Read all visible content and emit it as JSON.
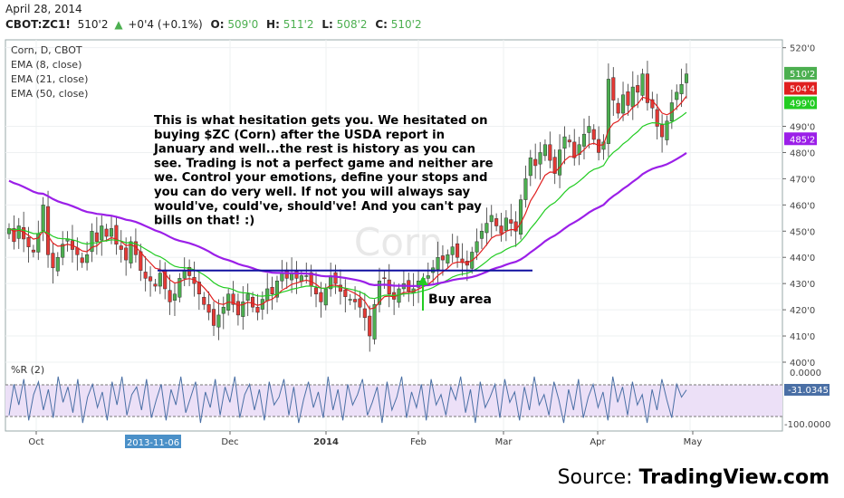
{
  "header": {
    "date": "April 28, 2014",
    "symbol": "CBOT:ZC1!",
    "last": "510'2",
    "change_arrow": "▲",
    "change": "+0'4 (+0.1%)",
    "open_label": "O:",
    "open": "509'0",
    "high_label": "H:",
    "high": "511'2",
    "low_label": "L:",
    "low": "508'2",
    "close_label": "C:",
    "close": "510'2"
  },
  "legend": {
    "title": "Corn, D, CBOT",
    "ema8": "EMA (8, close)",
    "ema21": "EMA (21, close)",
    "ema50": "EMA (50, close)"
  },
  "watermark": "Corn",
  "annotation": {
    "lines": [
      "This is what hesitation gets you.  We hesitated on",
      "buying $ZC (Corn) after the USDA report  in",
      "January and well...the rest is history as you can",
      "see.  Trading is not a perfect game and neither are",
      "we.  Control your emotions, define your stops and",
      "you can do very well.  If not you will always say",
      "would've, could've, should've! And you can't pay",
      "bills on that!  :)"
    ],
    "buy_area": "Buy area"
  },
  "price_axis": {
    "ticks": [
      "520'0",
      "490'0",
      "480'0",
      "470'0",
      "460'0",
      "450'0",
      "440'0",
      "430'0",
      "420'0",
      "410'0",
      "400'0"
    ],
    "tick_values": [
      520,
      490,
      480,
      470,
      460,
      450,
      440,
      430,
      420,
      410,
      400
    ],
    "labels": [
      {
        "text": "510'2",
        "value": 510.25,
        "color": "#4caf50"
      },
      {
        "text": "504'4",
        "value": 504.5,
        "color": "#e02020"
      },
      {
        "text": "499'0",
        "value": 499.0,
        "color": "#22cc22"
      },
      {
        "text": "485'2",
        "value": 485.25,
        "color": "#9b1fe8"
      }
    ]
  },
  "indicator": {
    "title": "%R (2)",
    "ticks": [
      "0.0000",
      "-100.0000"
    ],
    "current": "-31.0345"
  },
  "time_axis": {
    "labels": [
      "Oct",
      "Dec",
      "2014",
      "Feb",
      "Mar",
      "Apr",
      "May"
    ],
    "cursor_date": "2013-11-06"
  },
  "source": {
    "prefix": "Source: ",
    "name": "TradingView.com"
  },
  "colors": {
    "up": "#4caf50",
    "down": "#e53935",
    "ema8": "#e02020",
    "ema21": "#22cc22",
    "ema50": "#9b1fe8",
    "trendline": "#1010a0",
    "arrow": "#22cc22",
    "wpr": "#4a6fa5",
    "band": "#ece0f7"
  },
  "chart_data": {
    "type": "candlestick",
    "title": "Corn, D, CBOT",
    "ylim": [
      400,
      523
    ],
    "x_range": [
      "2013-09-23",
      "2014-05-02"
    ],
    "closes": [
      451,
      446,
      452,
      447,
      444,
      442,
      449,
      460,
      441,
      436,
      440,
      445,
      447,
      443,
      441,
      438,
      441,
      450,
      446,
      452,
      448,
      451,
      445,
      443,
      439,
      446,
      441,
      435,
      432,
      431,
      429,
      434,
      428,
      423,
      426,
      432,
      435,
      433,
      430,
      426,
      422,
      419,
      414,
      418,
      421,
      426,
      422,
      418,
      423,
      426,
      421,
      419,
      424,
      428,
      426,
      431,
      434,
      432,
      434,
      432,
      433,
      433,
      429,
      426,
      423,
      428,
      433,
      430,
      427,
      425,
      424,
      423,
      421,
      417,
      410,
      422,
      431,
      432,
      426,
      424,
      428,
      430,
      427,
      428,
      431,
      432,
      433,
      436,
      440,
      439,
      441,
      444,
      440,
      438,
      437,
      442,
      446,
      450,
      453,
      456,
      452,
      449,
      455,
      453,
      450,
      462,
      470,
      478,
      475,
      480,
      483,
      477,
      472,
      481,
      486,
      484,
      478,
      483,
      487,
      490,
      485,
      480,
      484,
      508,
      500,
      495,
      502,
      498,
      505,
      503,
      510,
      499,
      497,
      490,
      486,
      492,
      499,
      503,
      506,
      510
    ],
    "opens_note": "open values approximated from close of previous bar",
    "ema": [
      {
        "name": "EMA (8, close)",
        "last": 504.5
      },
      {
        "name": "EMA (21, close)",
        "last": 499.0
      },
      {
        "name": "EMA (50, close)",
        "last": 485.25
      }
    ],
    "trendline_value": 435,
    "williams_r": [
      -80,
      -20,
      -60,
      -10,
      -90,
      -40,
      -15,
      -70,
      -30,
      -85,
      -5,
      -55,
      -25,
      -75,
      -10,
      -95,
      -45,
      -20,
      -65,
      -35,
      -90,
      -15,
      -60,
      -5,
      -80,
      -40,
      -25,
      -70,
      -10,
      -85,
      -50,
      -20,
      -90,
      -30,
      -60,
      -5,
      -75,
      -45,
      -15,
      -95,
      -35,
      -65,
      -10,
      -80,
      -25,
      -55,
      -5,
      -85,
      -40,
      -20,
      -70,
      -30,
      -90,
      -15,
      -60,
      -45,
      -10,
      -80,
      -25,
      -95,
      -50,
      -15,
      -65,
      -35,
      -85,
      -5,
      -70,
      -30,
      -90,
      -20,
      -60,
      -40,
      -10,
      -80,
      -55,
      -25,
      -95,
      -15,
      -70,
      -45,
      -5,
      -85,
      -35,
      -65,
      -20,
      -90,
      -10,
      -60,
      -40,
      -80,
      -25,
      -50,
      -5,
      -75,
      -30,
      -95,
      -15,
      -65,
      -45,
      -20,
      -85,
      -10,
      -55,
      -35,
      -90,
      -25,
      -70,
      -5,
      -60,
      -40,
      -80,
      -15,
      -50,
      -95,
      -30,
      -70,
      -10,
      -85,
      -45,
      -20,
      -65,
      -35,
      -90,
      -5,
      -55,
      -25,
      -80,
      -15,
      -60,
      -40,
      -95,
      -30,
      -70,
      -10,
      -50,
      -85,
      -20,
      -45,
      -31
    ]
  }
}
